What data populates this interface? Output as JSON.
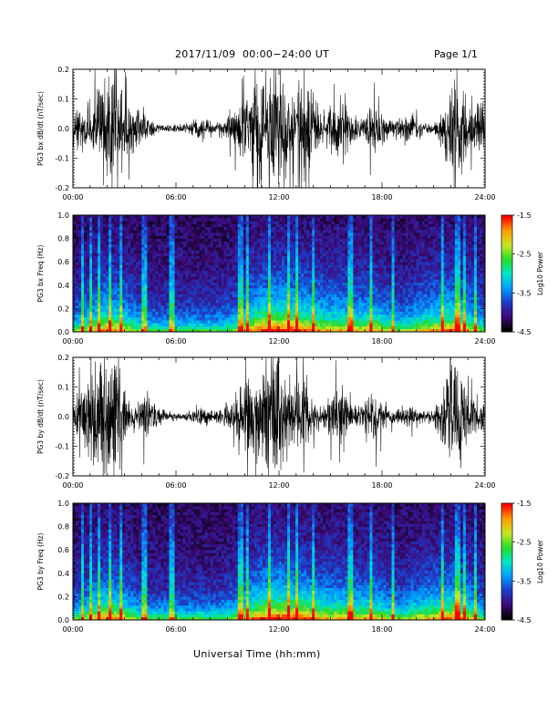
{
  "header": {
    "title": "2017/11/09  00:00−24:00 UT",
    "page": "Page 1/1"
  },
  "colors": {
    "waveform": "#000000",
    "spectrogram_background": "#1a0a3a",
    "colormap": [
      "#000000",
      "#3c0a78",
      "#1e3cc8",
      "#00a0ff",
      "#00e6c8",
      "#28dc28",
      "#c8e628",
      "#ffa000",
      "#ff0000"
    ]
  },
  "chart_data": [
    {
      "type": "line",
      "name": "bx-waveform",
      "ylabel": "PG3 bx dB/dt (nT/sec)",
      "ylim": [
        -0.2,
        0.2
      ],
      "yticks": [
        "-0.2",
        "-0.1",
        "0.0",
        "0.1",
        "0.2"
      ],
      "xlim": [
        0,
        24
      ],
      "xticks": [
        "00:00",
        "06:00",
        "12:00",
        "18:00",
        "24:00"
      ],
      "xlabel": "",
      "activity": [
        {
          "t": 0.3,
          "amp": 0.04
        },
        {
          "t": 1.5,
          "amp": 0.09
        },
        {
          "t": 2.5,
          "amp": 0.13
        },
        {
          "t": 3.8,
          "amp": 0.05
        },
        {
          "t": 7.5,
          "amp": 0.02
        },
        {
          "t": 9.5,
          "amp": 0.04
        },
        {
          "t": 10.6,
          "amp": 0.13
        },
        {
          "t": 11.9,
          "amp": 0.18
        },
        {
          "t": 13.5,
          "amp": 0.15
        },
        {
          "t": 15.5,
          "amp": 0.1
        },
        {
          "t": 17.5,
          "amp": 0.07
        },
        {
          "t": 19.5,
          "amp": 0.03
        },
        {
          "t": 22.3,
          "amp": 0.15
        },
        {
          "t": 23.6,
          "amp": 0.06
        }
      ]
    },
    {
      "type": "heatmap",
      "name": "bx-spectrogram",
      "ylabel": "PG3 bx Freq (Hz)",
      "ylim": [
        0.0,
        1.0
      ],
      "yticks": [
        "0.0",
        "0.2",
        "0.4",
        "0.6",
        "0.8",
        "1.0"
      ],
      "xlim": [
        0,
        24
      ],
      "xticks": [
        "00:00",
        "06:00",
        "12:00",
        "18:00",
        "24:00"
      ],
      "xlabel": "",
      "colorbar": {
        "label": "Log10 Power",
        "range": [
          -4.5,
          -1.5
        ],
        "ticks": [
          "-1.5",
          "-2.5",
          "-3.5",
          "-4.5"
        ]
      },
      "bright_times": [
        0.55,
        1.1,
        1.55,
        2.2,
        2.8,
        4.15,
        5.75,
        9.75,
        10.2,
        11.45,
        12.55,
        13.1,
        14.05,
        16.15,
        17.3,
        18.6,
        21.5,
        22.4,
        22.8,
        23.5
      ]
    },
    {
      "type": "line",
      "name": "by-waveform",
      "ylabel": "PG3 by dB/dt (nT/sec)",
      "ylim": [
        -0.2,
        0.2
      ],
      "yticks": [
        "-0.2",
        "-0.1",
        "0.0",
        "0.1",
        "0.2"
      ],
      "xlim": [
        0,
        24
      ],
      "xticks": [
        "00:00",
        "06:00",
        "12:00",
        "18:00",
        "24:00"
      ],
      "xlabel": "",
      "activity": [
        {
          "t": 0.3,
          "amp": 0.04
        },
        {
          "t": 1.3,
          "amp": 0.13
        },
        {
          "t": 2.4,
          "amp": 0.16
        },
        {
          "t": 4.3,
          "amp": 0.06
        },
        {
          "t": 7.5,
          "amp": 0.02
        },
        {
          "t": 9.5,
          "amp": 0.05
        },
        {
          "t": 10.6,
          "amp": 0.13
        },
        {
          "t": 11.8,
          "amp": 0.16
        },
        {
          "t": 13.3,
          "amp": 0.12
        },
        {
          "t": 15.5,
          "amp": 0.09
        },
        {
          "t": 17.5,
          "amp": 0.06
        },
        {
          "t": 19.5,
          "amp": 0.03
        },
        {
          "t": 22.2,
          "amp": 0.19
        },
        {
          "t": 23.6,
          "amp": 0.05
        }
      ]
    },
    {
      "type": "heatmap",
      "name": "by-spectrogram",
      "ylabel": "PG3 by Freq (Hz)",
      "ylim": [
        0.0,
        1.0
      ],
      "yticks": [
        "0.0",
        "0.2",
        "0.4",
        "0.6",
        "0.8",
        "1.0"
      ],
      "xlim": [
        0,
        24
      ],
      "xticks": [
        "00:00",
        "06:00",
        "12:00",
        "18:00",
        "24:00"
      ],
      "xlabel": "Universal Time (hh:mm)",
      "colorbar": {
        "label": "Log10 Power",
        "range": [
          -4.5,
          -1.5
        ],
        "ticks": [
          "-1.5",
          "-2.5",
          "-3.5",
          "-4.5"
        ]
      },
      "bright_times": [
        0.55,
        1.1,
        1.55,
        2.2,
        2.8,
        4.15,
        5.75,
        9.75,
        10.2,
        11.45,
        12.55,
        13.1,
        14.05,
        16.15,
        17.3,
        18.6,
        21.5,
        22.4,
        22.8,
        23.5
      ]
    }
  ]
}
